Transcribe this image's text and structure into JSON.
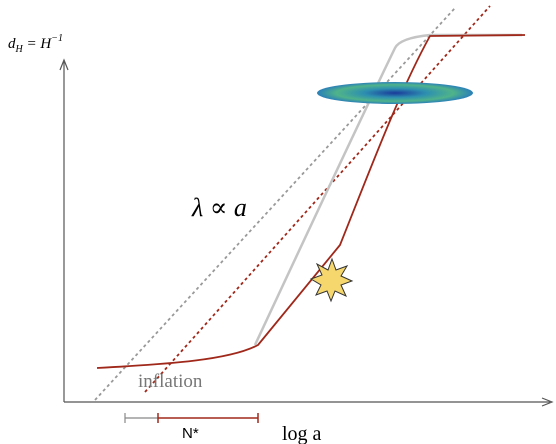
{
  "y_axis_label": {
    "base": "d",
    "sub": "H",
    "rest": " = H",
    "sup": "−1"
  },
  "annotation": "λ ∝ a",
  "phase_label": "inflation",
  "efolds_label": "N*",
  "x_axis_label": "log a"
}
